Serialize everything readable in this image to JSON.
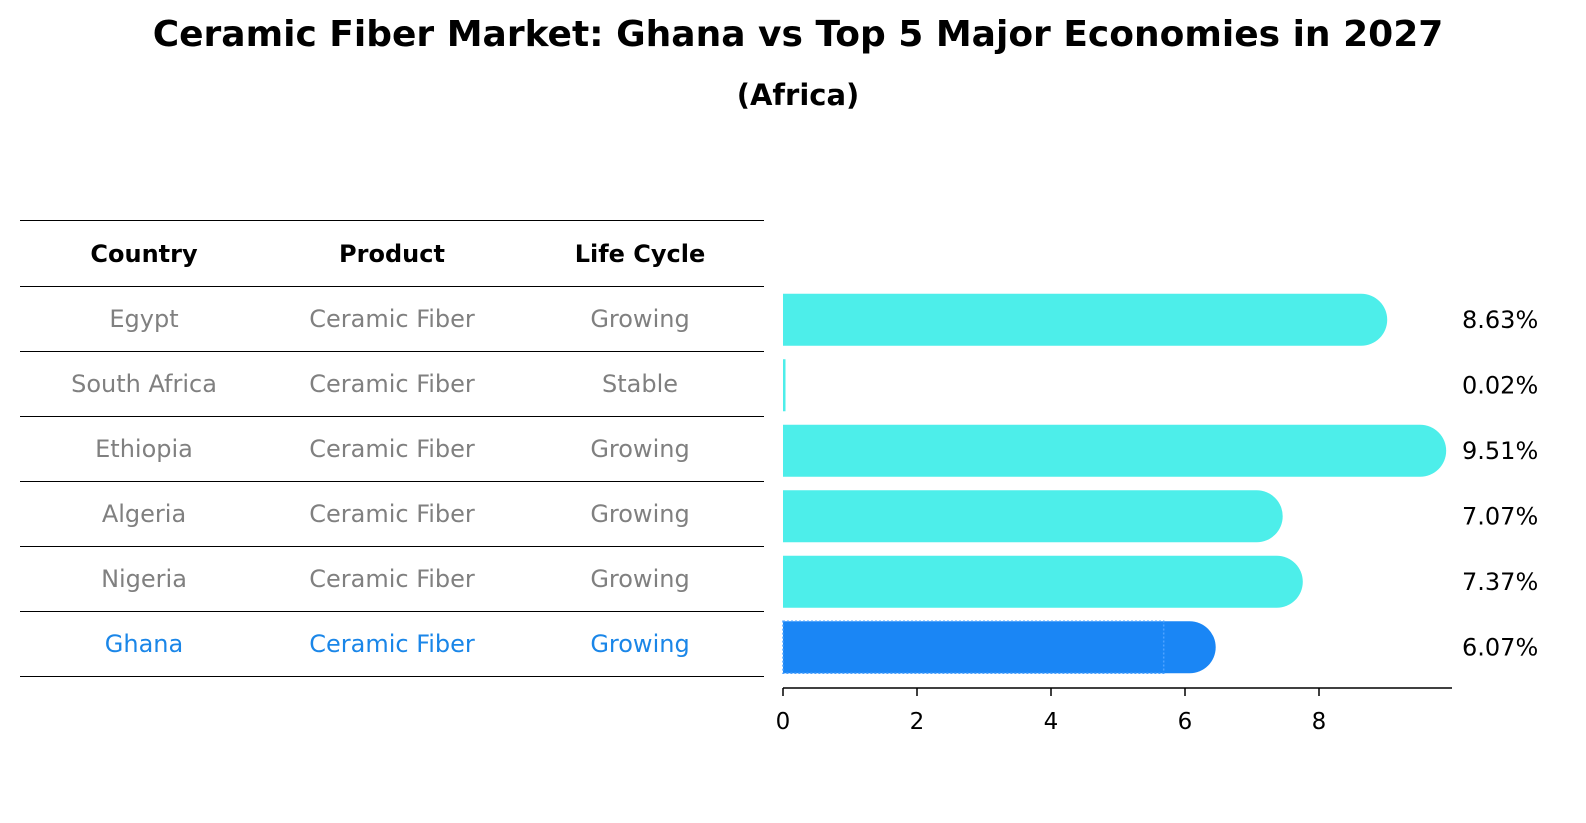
{
  "title": "Ceramic Fiber Market: Ghana vs Top 5 Major Economies in 2027",
  "subtitle": "(Africa)",
  "table": {
    "headers": [
      "Country",
      "Product",
      "Life Cycle"
    ],
    "rows": [
      {
        "country": "Egypt",
        "product": "Ceramic Fiber",
        "life_cycle": "Growing"
      },
      {
        "country": "South Africa",
        "product": "Ceramic Fiber",
        "life_cycle": "Stable"
      },
      {
        "country": "Ethiopia",
        "product": "Ceramic Fiber",
        "life_cycle": "Growing"
      },
      {
        "country": "Algeria",
        "product": "Ceramic Fiber",
        "life_cycle": "Growing"
      },
      {
        "country": "Nigeria",
        "product": "Ceramic Fiber",
        "life_cycle": "Growing"
      },
      {
        "country": "Ghana",
        "product": "Ceramic Fiber",
        "life_cycle": "Growing"
      }
    ]
  },
  "colors": {
    "bar": "#4deeea",
    "highlight": "#1a86f5",
    "muted_text": "#808080",
    "highlight_text": "#1a86e8"
  },
  "chart_data": {
    "type": "bar",
    "orientation": "horizontal",
    "categories": [
      "Egypt",
      "South Africa",
      "Ethiopia",
      "Algeria",
      "Nigeria",
      "Ghana"
    ],
    "values": [
      8.63,
      0.02,
      9.51,
      7.07,
      7.37,
      6.07
    ],
    "value_labels": [
      "8.63%",
      "0.02%",
      "9.51%",
      "7.07%",
      "7.37%",
      "6.07%"
    ],
    "highlight": "Ghana",
    "xlim": [
      0,
      10
    ],
    "xticks": [
      0,
      2,
      4,
      6,
      8
    ],
    "xlabel": "",
    "ylabel": ""
  }
}
